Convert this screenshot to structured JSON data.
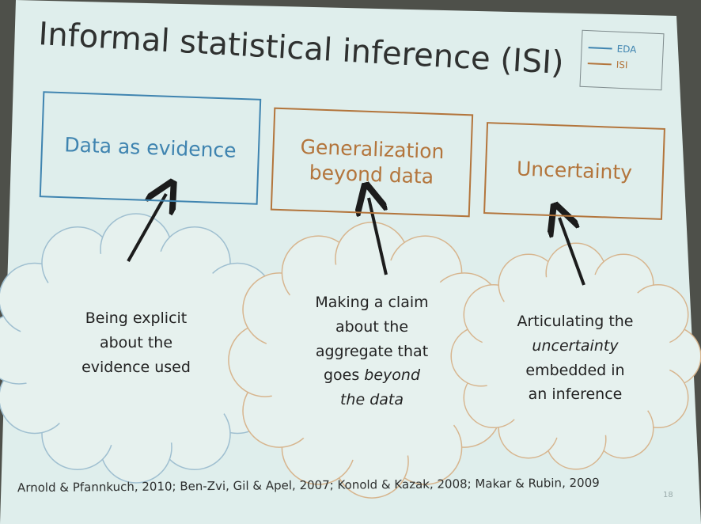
{
  "slide": {
    "title": "Informal statistical inference (ISI)",
    "colors": {
      "eda": "#3f84b0",
      "isi": "#b3753c",
      "background": "#dfeeec"
    },
    "legend": [
      {
        "label": "EDA",
        "color": "#3f84b0"
      },
      {
        "label": "ISI",
        "color": "#b3753c"
      }
    ],
    "boxes": [
      {
        "lines": [
          "Data as evidence"
        ],
        "color": "#3f84b0"
      },
      {
        "lines": [
          "Generalization",
          "beyond data"
        ],
        "color": "#b3753c"
      },
      {
        "lines": [
          "Uncertainty"
        ],
        "color": "#b3753c"
      }
    ],
    "clouds": [
      {
        "lines": [
          "Being explicit",
          "about the",
          "evidence used"
        ],
        "color": "#9fbfd0"
      },
      {
        "lines": [
          "Making a claim",
          "about the",
          "aggregate that",
          "goes <em>beyond</em>",
          "<em>the data</em>"
        ],
        "color": "#d7b58e"
      },
      {
        "lines": [
          "Articulating the",
          "<em>uncertainty</em>",
          "embedded in",
          "an inference"
        ],
        "color": "#d7b58e"
      }
    ],
    "citation": "Arnold & Pfannkuch, 2010; Ben-Zvi, Gil & Apel, 2007; Konold & Kazak, 2008; Makar & Rubin, 2009",
    "page_number": "18"
  }
}
